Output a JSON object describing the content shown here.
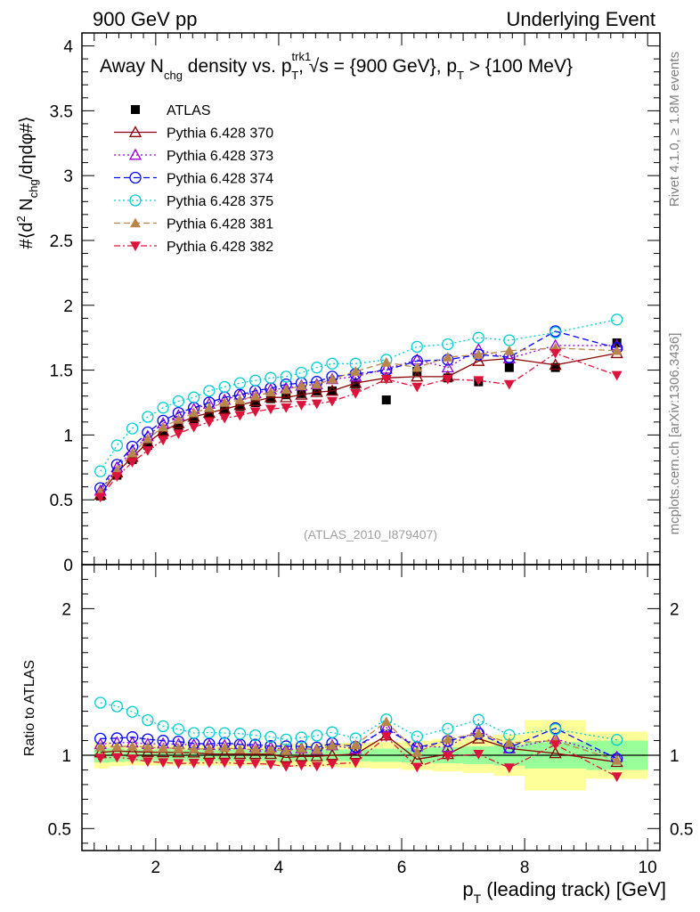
{
  "header": {
    "left": "900 GeV pp",
    "right": "Underlying Event"
  },
  "plot_title": {
    "pre": "Away N",
    "sub1": "chg",
    "mid": " density vs. p",
    "sup2": "trk1",
    "sub2": "T",
    "post": ", √s = {900 GeV}, p",
    "sub3": "T",
    "tail": " > {100 MeV}"
  },
  "side_text": {
    "rivet": "Rivet 4.1.0, ≥ 1.8M events",
    "mcplots": "mcplots.cern.ch [arXiv:1306.3436]"
  },
  "analysis_label": "(ATLAS_2010_I879407)",
  "ylabel_main": {
    "pre": "#⟨d",
    "sup": "2",
    "mid": " N",
    "sub": "chg",
    "post": "/dηdφ#⟩"
  },
  "ylabel_ratio": "Ratio to ATLAS",
  "xlabel": {
    "pre": "p",
    "sub": "T",
    "post": " (leading track) [GeV]"
  },
  "chart_data": {
    "type": "scatter",
    "x": [
      1.1,
      1.37,
      1.62,
      1.87,
      2.12,
      2.37,
      2.62,
      2.87,
      3.12,
      3.37,
      3.62,
      3.87,
      4.12,
      4.37,
      4.62,
      4.87,
      5.25,
      5.75,
      6.25,
      6.75,
      7.25,
      7.75,
      8.5,
      9.5
    ],
    "xlim": [
      0.8,
      10.2
    ],
    "ylim_main": [
      0,
      4.1
    ],
    "ylim_ratio": [
      0.35,
      2.3
    ],
    "x_ticks": [
      2,
      4,
      6,
      8,
      10
    ],
    "y_ticks_main": [
      0,
      0.5,
      1,
      1.5,
      2,
      2.5,
      3,
      3.5,
      4
    ],
    "y_ticks_ratio": [
      0.5,
      1,
      2
    ],
    "ratio_band": {
      "bins": [
        [
          1.0,
          1.25
        ],
        [
          1.25,
          1.5
        ],
        [
          1.5,
          1.75
        ],
        [
          1.75,
          2.0
        ],
        [
          2.0,
          2.25
        ],
        [
          2.25,
          2.5
        ],
        [
          2.5,
          2.75
        ],
        [
          2.75,
          3.0
        ],
        [
          3.0,
          3.25
        ],
        [
          3.25,
          3.5
        ],
        [
          3.5,
          3.75
        ],
        [
          3.75,
          4.0
        ],
        [
          4.0,
          4.25
        ],
        [
          4.25,
          4.5
        ],
        [
          4.5,
          4.75
        ],
        [
          4.75,
          5.0
        ],
        [
          5.0,
          5.5
        ],
        [
          5.5,
          6.0
        ],
        [
          6.0,
          6.5
        ],
        [
          6.5,
          7.0
        ],
        [
          7.0,
          7.5
        ],
        [
          7.5,
          8.0
        ],
        [
          8.0,
          9.0
        ],
        [
          9.0,
          10.0
        ]
      ],
      "stat_half": [
        0.05,
        0.045,
        0.04,
        0.04,
        0.04,
        0.04,
        0.04,
        0.04,
        0.04,
        0.04,
        0.04,
        0.04,
        0.04,
        0.04,
        0.04,
        0.04,
        0.04,
        0.045,
        0.05,
        0.055,
        0.06,
        0.07,
        0.09,
        0.1
      ],
      "tot_half": [
        0.09,
        0.075,
        0.07,
        0.07,
        0.07,
        0.07,
        0.07,
        0.07,
        0.07,
        0.07,
        0.07,
        0.07,
        0.08,
        0.08,
        0.08,
        0.08,
        0.085,
        0.09,
        0.1,
        0.11,
        0.12,
        0.14,
        0.24,
        0.16
      ]
    },
    "series": [
      {
        "name": "ATLAS",
        "marker": "square",
        "color": "#000000",
        "dash": "none",
        "line": false,
        "values": [
          0.53,
          0.69,
          0.81,
          0.92,
          1.01,
          1.07,
          1.12,
          1.16,
          1.19,
          1.22,
          1.25,
          1.28,
          1.31,
          1.32,
          1.34,
          1.34,
          1.39,
          1.27,
          1.49,
          1.44,
          1.41,
          1.52,
          1.52,
          1.71
        ]
      },
      {
        "name": "Pythia 6.428 370",
        "marker": "triangle-open",
        "color": "#8b0000",
        "dash": "none",
        "line": true,
        "values": [
          0.54,
          0.71,
          0.83,
          0.94,
          1.03,
          1.09,
          1.14,
          1.17,
          1.2,
          1.23,
          1.26,
          1.29,
          1.29,
          1.31,
          1.33,
          1.34,
          1.4,
          1.44,
          1.45,
          1.45,
          1.57,
          1.59,
          1.54,
          1.63
        ]
      },
      {
        "name": "Pythia 6.428 373",
        "marker": "triangle-open",
        "color": "#9400d3",
        "dash": "2,3",
        "line": true,
        "values": [
          0.57,
          0.75,
          0.88,
          0.99,
          1.09,
          1.15,
          1.2,
          1.24,
          1.27,
          1.31,
          1.32,
          1.35,
          1.36,
          1.38,
          1.39,
          1.43,
          1.45,
          1.51,
          1.58,
          1.52,
          1.66,
          1.59,
          1.69,
          1.69
        ]
      },
      {
        "name": "Pythia 6.428 374",
        "marker": "circle-open",
        "color": "#0000ff",
        "dash": "7,4",
        "line": true,
        "values": [
          0.59,
          0.77,
          0.91,
          1.02,
          1.11,
          1.17,
          1.21,
          1.25,
          1.29,
          1.31,
          1.34,
          1.36,
          1.39,
          1.4,
          1.41,
          1.45,
          1.47,
          1.5,
          1.57,
          1.58,
          1.62,
          1.6,
          1.8,
          1.67
        ]
      },
      {
        "name": "Pythia 6.428 375",
        "marker": "circle-open",
        "color": "#00ced1",
        "dash": "2,3",
        "line": true,
        "values": [
          0.72,
          0.92,
          1.05,
          1.14,
          1.21,
          1.26,
          1.29,
          1.34,
          1.37,
          1.4,
          1.42,
          1.44,
          1.45,
          1.48,
          1.52,
          1.55,
          1.55,
          1.58,
          1.68,
          1.7,
          1.75,
          1.73,
          1.79,
          1.89
        ]
      },
      {
        "name": "Pythia 6.428 381",
        "marker": "triangle-filled",
        "color": "#b8864b",
        "dash": "7,4",
        "line": true,
        "values": [
          0.56,
          0.73,
          0.86,
          0.97,
          1.06,
          1.12,
          1.17,
          1.21,
          1.25,
          1.27,
          1.3,
          1.33,
          1.35,
          1.38,
          1.39,
          1.43,
          1.49,
          1.56,
          1.52,
          1.6,
          1.62,
          1.65,
          1.67,
          1.65
        ]
      },
      {
        "name": "Pythia 6.428 382",
        "marker": "triangle-down-filled",
        "color": "#dc143c",
        "dash": "7,3,2,3",
        "line": true,
        "values": [
          0.52,
          0.68,
          0.79,
          0.88,
          0.96,
          1.01,
          1.06,
          1.1,
          1.13,
          1.15,
          1.18,
          1.2,
          1.21,
          1.23,
          1.24,
          1.26,
          1.32,
          1.43,
          1.37,
          1.43,
          1.42,
          1.39,
          1.63,
          1.46
        ]
      }
    ]
  }
}
